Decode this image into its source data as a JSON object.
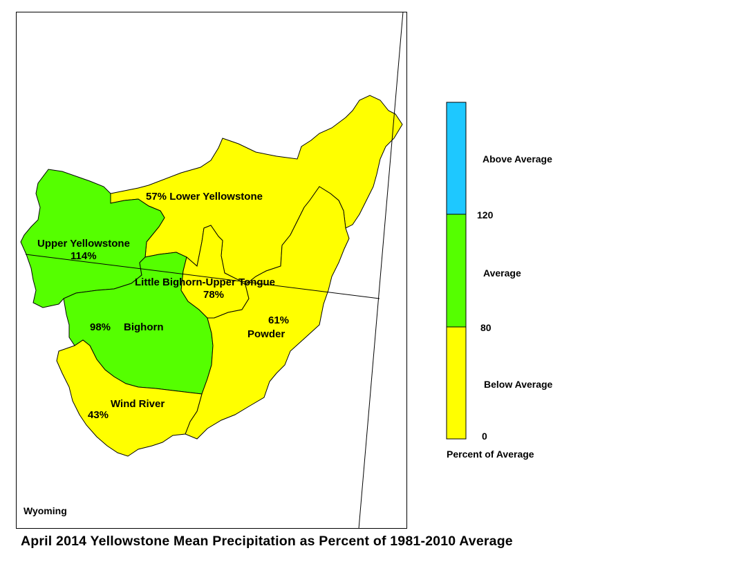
{
  "title": "April 2014 Yellowstone Mean Precipitation as Percent of 1981-2010 Average",
  "state_label": "Wyoming",
  "colors": {
    "above_average": "#1ec8ff",
    "average": "#55ff00",
    "below_average": "#ffff00",
    "outline": "#000000"
  },
  "legend": {
    "class_labels": {
      "above": "Above Average",
      "average": "Average",
      "below": "Below Average"
    },
    "breaks": {
      "upper": "120",
      "lower": "80",
      "zero": "0"
    },
    "unit_label": "Percent of Average"
  },
  "basins": {
    "lower_yellowstone": {
      "name": "Lower Yellowstone",
      "pct": "57%",
      "category": "below_average"
    },
    "upper_yellowstone": {
      "name": "Upper Yellowstone",
      "pct": "114%",
      "category": "average"
    },
    "little_bighorn_upper_tongue": {
      "name": "Little Bighorn-Upper Tongue",
      "pct": "78%",
      "category": "below_average"
    },
    "bighorn": {
      "name": "Bighorn",
      "pct": "98%",
      "category": "average"
    },
    "powder": {
      "name": "Powder",
      "pct": "61%",
      "category": "below_average"
    },
    "wind_river": {
      "name": "Wind River",
      "pct": "43%",
      "category": "below_average"
    }
  }
}
